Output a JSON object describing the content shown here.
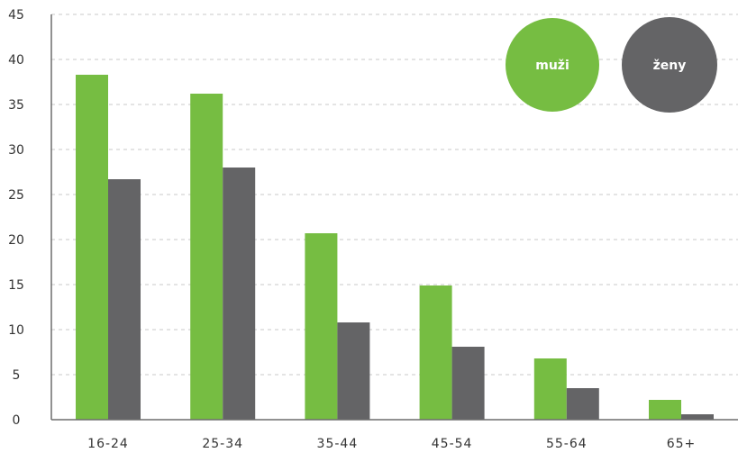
{
  "chart_data": {
    "type": "bar",
    "categories": [
      "16-24",
      "25-34",
      "35-44",
      "45-54",
      "55-64",
      "65+"
    ],
    "series": [
      {
        "name": "muži",
        "values": [
          38.3,
          36.2,
          20.7,
          14.9,
          6.8,
          2.2
        ],
        "color": "#76bd42"
      },
      {
        "name": "ženy",
        "values": [
          26.7,
          28.0,
          10.8,
          8.1,
          3.5,
          0.6
        ],
        "color": "#646466"
      }
    ],
    "yticks": [
      "0",
      "5",
      "10",
      "15",
      "20",
      "25",
      "30",
      "35",
      "40",
      "45"
    ],
    "ylim": [
      0,
      45
    ],
    "grid": true,
    "legend_position": "top-right",
    "title": "",
    "xlabel": "",
    "ylabel": ""
  }
}
